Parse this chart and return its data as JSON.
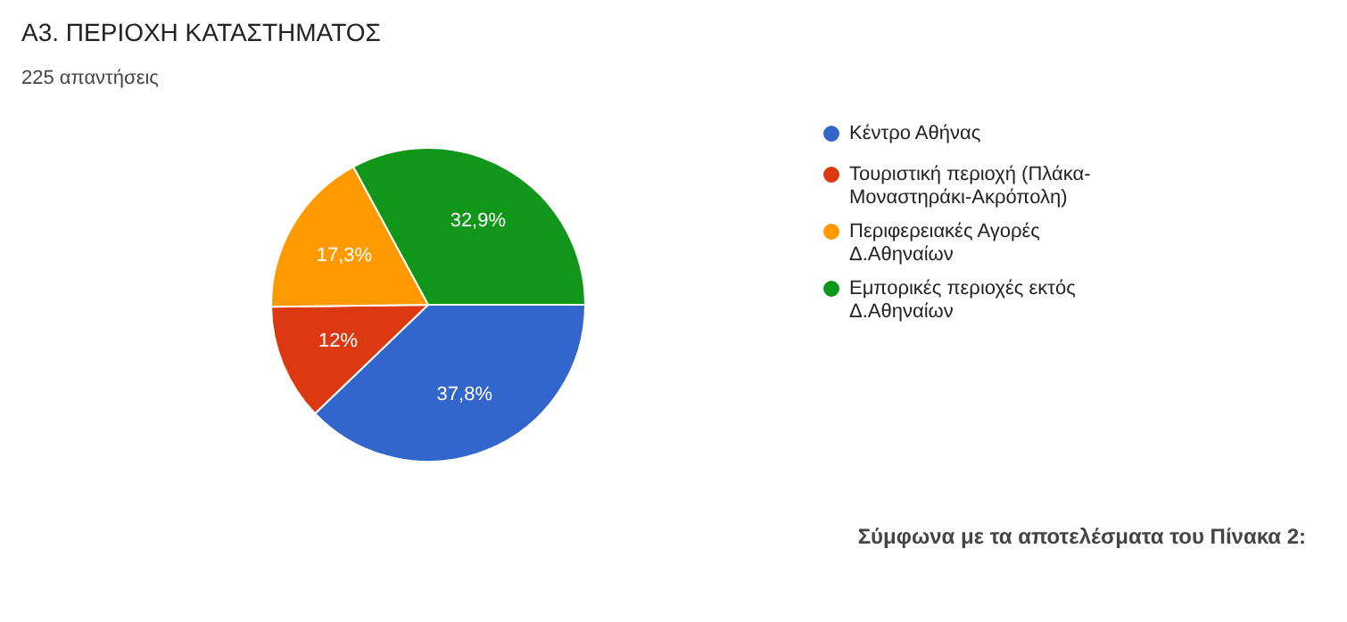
{
  "chart_data": {
    "type": "pie",
    "title": "Α3. ΠΕΡΙΟΧΗ ΚΑΤΑΣΤΗΜΑΤΟΣ",
    "subtitle": "225 απαντήσεις",
    "categories": [
      "Κέντρο Αθήνας",
      "Τουριστική περιοχή (Πλάκα-Μοναστηράκι-Ακρόπολη)",
      "Περιφερειακές Αγορές Δ.Αθηναίων",
      "Εμπορικές περιοχές εκτός Δ.Αθηναίων"
    ],
    "values": [
      37.8,
      12,
      17.3,
      32.9
    ],
    "value_labels": [
      "37,8%",
      "12%",
      "17,3%",
      "32,9%"
    ],
    "colors": [
      "#3366cc",
      "#dc3912",
      "#ff9900",
      "#109618"
    ],
    "legend": "right",
    "annotations": [
      "Σύμφωνα με τα αποτελέσματα του Πίνακα 2:"
    ]
  }
}
